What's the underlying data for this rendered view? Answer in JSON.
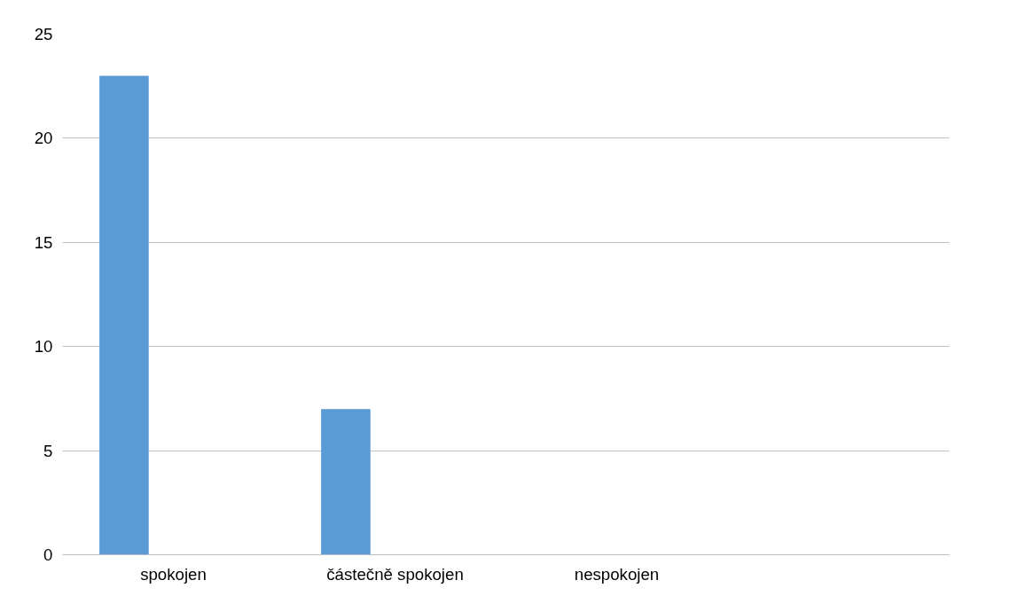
{
  "chart_data": {
    "type": "bar",
    "categories": [
      "spokojen",
      "částečně spokojen",
      "nespokojen",
      null
    ],
    "series": [
      {
        "color": "#5b9bd5",
        "values": [
          23,
          7,
          0,
          null
        ]
      }
    ],
    "ylim": [
      0,
      25
    ],
    "yticks": [
      0,
      5,
      10,
      15,
      20,
      25
    ],
    "grid": "y"
  }
}
